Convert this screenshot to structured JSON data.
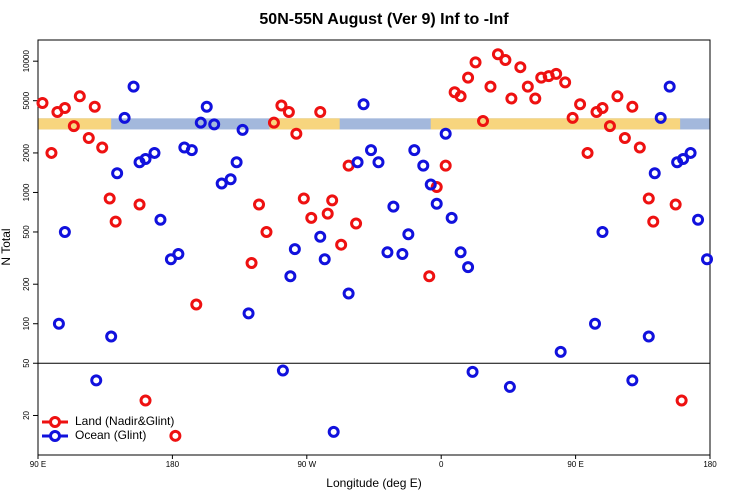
{
  "chart_data": {
    "type": "scatter",
    "title": "50N-55N August (Ver 9)   Inf to -Inf",
    "x_label": "Longitude (deg E)",
    "y_label": "N Total",
    "xlim": [
      90,
      540
    ],
    "ylim": [
      10,
      14500
    ],
    "log_y": true,
    "xticks": [
      {
        "value": 90,
        "label": "90 E"
      },
      180,
      {
        "value": 270,
        "label": "90 W"
      },
      {
        "value": 360,
        "label": "0"
      },
      {
        "value": 450,
        "label": "90 E"
      },
      {
        "value": 540,
        "label": "180"
      }
    ],
    "yticks": [
      20,
      50,
      100,
      200,
      500,
      1000,
      2000,
      5000,
      10000
    ],
    "hline": 50,
    "legend": "bottomleft",
    "band": {
      "ylim": [
        3020,
        3670
      ],
      "ocean_color": "#a3b8dc",
      "land_color": "#f7d57e",
      "land": [
        [
          90,
          139
        ],
        [
          245,
          292
        ],
        [
          353,
          520
        ]
      ]
    },
    "series": [
      {
        "name": "Land (Nadir&Glint)",
        "color": "#ee1111",
        "x": [
          93,
          99,
          103,
          108,
          114,
          118,
          124,
          128,
          133,
          138,
          142,
          158,
          162,
          182,
          196,
          233,
          238,
          243,
          248,
          253,
          258,
          263,
          268,
          273,
          279,
          284,
          287,
          293,
          298,
          303,
          352,
          357,
          363,
          369,
          373,
          378,
          383,
          388,
          393,
          398,
          403,
          407,
          413,
          418,
          423,
          427,
          432,
          437,
          443,
          448,
          453,
          458,
          464,
          468,
          473,
          478,
          483,
          488,
          493,
          499,
          502,
          517,
          521
        ],
        "values": [
          4800,
          2000,
          4100,
          4400,
          3200,
          5400,
          2600,
          4500,
          2200,
          900,
          600,
          810,
          26,
          14,
          140,
          290,
          810,
          500,
          3400,
          4600,
          4100,
          2800,
          900,
          640,
          4100,
          690,
          870,
          400,
          1600,
          580,
          230,
          1100,
          1600,
          5800,
          5400,
          7500,
          9800,
          3500,
          6400,
          11300,
          10200,
          5200,
          9000,
          6400,
          5200,
          7500,
          7700,
          8000,
          6900,
          3700,
          4700,
          2000,
          4100,
          4400,
          3200,
          5400,
          2600,
          4500,
          2200,
          900,
          600,
          810,
          26
        ]
      },
      {
        "name": "Ocean (Glint)",
        "color": "#1111dd",
        "x": [
          104,
          108,
          129,
          139,
          143,
          148,
          154,
          158,
          162,
          168,
          172,
          179,
          184,
          188,
          193,
          199,
          203,
          208,
          213,
          219,
          223,
          227,
          231,
          254,
          259,
          262,
          279,
          282,
          288,
          298,
          304,
          308,
          313,
          318,
          324,
          328,
          334,
          338,
          342,
          348,
          353,
          357,
          363,
          367,
          373,
          378,
          381,
          406,
          440,
          463,
          468,
          488,
          499,
          503,
          507,
          513,
          518,
          522,
          527,
          532,
          538
        ],
        "values": [
          100,
          500,
          37,
          80,
          1400,
          3700,
          6400,
          1700,
          1800,
          2000,
          620,
          310,
          340,
          2200,
          2100,
          3400,
          4500,
          3300,
          1170,
          1260,
          1700,
          3000,
          120,
          44,
          230,
          370,
          460,
          310,
          15,
          170,
          1700,
          4700,
          2100,
          1700,
          350,
          780,
          340,
          480,
          2100,
          1600,
          1150,
          820,
          2800,
          640,
          350,
          270,
          43,
          33,
          61,
          100,
          500,
          37,
          80,
          1400,
          3700,
          6400,
          1700,
          1800,
          2000,
          620,
          310
        ]
      }
    ]
  }
}
